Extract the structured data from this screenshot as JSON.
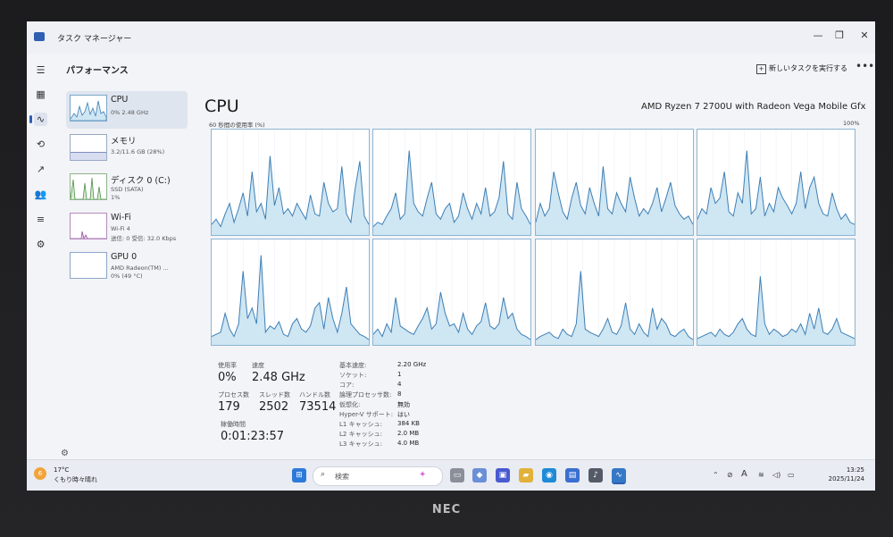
{
  "window": {
    "title": "タスク マネージャー"
  },
  "header": {
    "page_title": "パフォーマンス",
    "run_task_label": "新しいタスクを実行する",
    "more_label": "•••"
  },
  "nav": [
    "menu-icon",
    "processes-icon",
    "performance-icon",
    "history-icon",
    "startup-icon",
    "users-icon",
    "details-icon",
    "services-icon"
  ],
  "resources": [
    {
      "name": "CPU",
      "sub1": "0%  2.48 GHz",
      "sub2": ""
    },
    {
      "name": "メモリ",
      "sub1": "3.2/11.6 GB (28%)",
      "sub2": ""
    },
    {
      "name": "ディスク 0 (C:)",
      "sub1": "SSD (SATA)",
      "sub2": "1%"
    },
    {
      "name": "Wi-Fi",
      "sub1": "Wi-Fi 4",
      "sub2": "送信: 0 受信: 32.0 Kbps"
    },
    {
      "name": "GPU 0",
      "sub1": "AMD Radeon(TM) ...",
      "sub2": "0%  (49 °C)"
    }
  ],
  "main": {
    "title": "CPU",
    "model": "AMD Ryzen 7 2700U with Radeon Vega Mobile Gfx",
    "usage_label": "60 秒間の使用率 (%)",
    "usage_max": "100%"
  },
  "stats": {
    "utilization_label": "使用率",
    "utilization_value": "0%",
    "speed_label": "速度",
    "speed_value": "2.48 GHz",
    "processes_label": "プロセス数",
    "processes_value": "179",
    "threads_label": "スレッド数",
    "threads_value": "2502",
    "handles_label": "ハンドル数",
    "handles_value": "73514",
    "uptime_label": "稼働時間",
    "uptime_value": "0:01:23:57"
  },
  "specs": [
    {
      "label": "基本速度:",
      "value": "2.20 GHz"
    },
    {
      "label": "ソケット:",
      "value": "1"
    },
    {
      "label": "コア:",
      "value": "4"
    },
    {
      "label": "論理プロセッサ数:",
      "value": "8"
    },
    {
      "label": "仮想化:",
      "value": "無効"
    },
    {
      "label": "Hyper-V サポート:",
      "value": "はい"
    },
    {
      "label": "L1 キャッシュ:",
      "value": "384 KB"
    },
    {
      "label": "L2 キャッシュ:",
      "value": "2.0 MB"
    },
    {
      "label": "L3 キャッシュ:",
      "value": "4.0 MB"
    }
  ],
  "taskbar": {
    "weather_temp": "17°C",
    "weather_desc": "くもり時々晴れ",
    "weather_badge": "6",
    "search_placeholder": "検索",
    "time": "13:25",
    "date": "2025/11/24",
    "ime": "A"
  },
  "brand": "NEC",
  "colors": {
    "graph_line": "#3d7fb6",
    "graph_fill": "#cfe6f3",
    "graph_border": "#8bb5d4",
    "accent": "#2c5fb0"
  },
  "chart_data": {
    "type": "area",
    "ylim": [
      0,
      100
    ],
    "series": [
      {
        "values": [
          10,
          15,
          8,
          20,
          30,
          12,
          25,
          40,
          18,
          60,
          22,
          30,
          15,
          75,
          28,
          45,
          20,
          25,
          18,
          30,
          22,
          15,
          38,
          20,
          18,
          50,
          30,
          22,
          25,
          65,
          20,
          12,
          45,
          70,
          18,
          10
        ]
      },
      {
        "values": [
          8,
          12,
          10,
          18,
          25,
          40,
          15,
          20,
          80,
          30,
          22,
          18,
          35,
          50,
          20,
          15,
          25,
          30,
          12,
          18,
          40,
          25,
          15,
          30,
          20,
          45,
          18,
          22,
          35,
          70,
          20,
          15,
          50,
          25,
          18,
          10
        ]
      },
      {
        "values": [
          12,
          30,
          18,
          25,
          60,
          40,
          22,
          15,
          35,
          50,
          28,
          20,
          45,
          30,
          18,
          65,
          25,
          20,
          40,
          30,
          22,
          55,
          35,
          18,
          25,
          20,
          30,
          45,
          22,
          35,
          50,
          28,
          20,
          15,
          18,
          10
        ]
      },
      {
        "values": [
          15,
          25,
          20,
          45,
          30,
          35,
          60,
          22,
          18,
          40,
          30,
          80,
          20,
          25,
          55,
          18,
          30,
          22,
          45,
          35,
          28,
          20,
          30,
          60,
          25,
          45,
          55,
          30,
          20,
          18,
          40,
          25,
          15,
          20,
          12,
          10
        ]
      },
      {
        "values": [
          8,
          10,
          12,
          30,
          15,
          8,
          20,
          70,
          25,
          35,
          20,
          85,
          12,
          18,
          15,
          22,
          10,
          8,
          20,
          25,
          15,
          12,
          18,
          35,
          40,
          15,
          45,
          25,
          12,
          30,
          55,
          20,
          15,
          10,
          8,
          5
        ]
      },
      {
        "values": [
          10,
          15,
          8,
          20,
          12,
          45,
          18,
          15,
          12,
          10,
          18,
          25,
          35,
          15,
          20,
          50,
          30,
          18,
          20,
          12,
          30,
          15,
          10,
          18,
          22,
          40,
          18,
          15,
          20,
          45,
          25,
          30,
          15,
          10,
          8,
          5
        ]
      },
      {
        "values": [
          5,
          8,
          10,
          12,
          8,
          6,
          15,
          10,
          8,
          20,
          70,
          15,
          12,
          10,
          8,
          15,
          25,
          12,
          10,
          18,
          40,
          15,
          10,
          20,
          12,
          8,
          35,
          15,
          25,
          20,
          10,
          8,
          12,
          15,
          8,
          5
        ]
      },
      {
        "values": [
          6,
          8,
          10,
          12,
          8,
          15,
          10,
          8,
          12,
          20,
          25,
          15,
          10,
          8,
          65,
          20,
          10,
          15,
          12,
          8,
          10,
          15,
          12,
          20,
          10,
          30,
          15,
          35,
          12,
          10,
          15,
          25,
          12,
          10,
          8,
          6
        ]
      }
    ]
  }
}
